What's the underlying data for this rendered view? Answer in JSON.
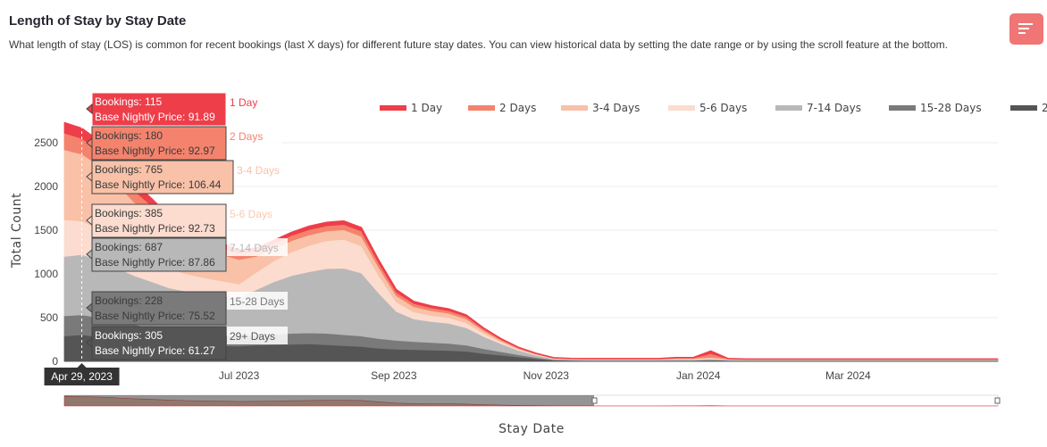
{
  "header": {
    "title": "Length of Stay by Stay Date",
    "subtitle": "What length of stay (LOS) is common for recent bookings (last X days) for different future stay dates. You can view historical data by setting the date range or by using the scroll feature at the bottom."
  },
  "menu": {
    "icon": "menu-lines-icon"
  },
  "chart_data": {
    "type": "area",
    "stacked": true,
    "xlabel": "Stay Date",
    "ylabel": "Total Count",
    "ylim": [
      0,
      3000
    ],
    "yticks": [
      "0",
      "500",
      "1000",
      "1500",
      "2000",
      "2500"
    ],
    "ytick_values": [
      0,
      500,
      1000,
      1500,
      2000,
      2500
    ],
    "xticks": [
      "Jul 2023",
      "Sep 2023",
      "Nov 2023",
      "Jan 2024",
      "Mar 2024"
    ],
    "xtick_dates": [
      "2023-07-01",
      "2023-09-01",
      "2023-11-01",
      "2024-01-01",
      "2024-03-01"
    ],
    "xlim": [
      "2023-04-22",
      "2024-04-30"
    ],
    "grid": true,
    "legend_position": "top-right",
    "hover_date": "Apr 29, 2023",
    "hover_date_value": "2023-04-29",
    "x": [
      "2023-04-22",
      "2023-04-29",
      "2023-05-06",
      "2023-05-13",
      "2023-05-20",
      "2023-05-27",
      "2023-06-03",
      "2023-06-10",
      "2023-06-17",
      "2023-06-24",
      "2023-07-01",
      "2023-07-08",
      "2023-07-15",
      "2023-07-22",
      "2023-07-29",
      "2023-08-05",
      "2023-08-12",
      "2023-08-19",
      "2023-08-26",
      "2023-09-02",
      "2023-09-09",
      "2023-09-16",
      "2023-09-23",
      "2023-09-30",
      "2023-10-07",
      "2023-10-14",
      "2023-10-21",
      "2023-10-28",
      "2023-11-04",
      "2023-11-11",
      "2023-11-18",
      "2023-11-25",
      "2023-12-02",
      "2023-12-09",
      "2023-12-16",
      "2023-12-23",
      "2023-12-30",
      "2024-01-06",
      "2024-01-13",
      "2024-01-20",
      "2024-01-27",
      "2024-02-03",
      "2024-02-10",
      "2024-02-17",
      "2024-02-24",
      "2024-03-02",
      "2024-03-09",
      "2024-03-16",
      "2024-03-23",
      "2024-03-30",
      "2024-04-06",
      "2024-04-13",
      "2024-04-20",
      "2024-04-30"
    ],
    "series": [
      {
        "name": "29+ Days",
        "color": "#555555",
        "values": [
          290,
          305,
          280,
          250,
          230,
          210,
          200,
          190,
          185,
          180,
          175,
          185,
          190,
          195,
          200,
          190,
          180,
          170,
          150,
          140,
          135,
          130,
          125,
          115,
          90,
          70,
          50,
          30,
          12,
          8,
          6,
          6,
          6,
          6,
          6,
          6,
          6,
          10,
          6,
          5,
          5,
          5,
          5,
          5,
          5,
          5,
          5,
          5,
          5,
          5,
          5,
          5,
          5,
          5
        ]
      },
      {
        "name": "15-28 Days",
        "color": "#7a7a7a",
        "values": [
          230,
          228,
          220,
          200,
          190,
          180,
          160,
          140,
          130,
          120,
          110,
          115,
          120,
          125,
          125,
          130,
          125,
          120,
          110,
          100,
          90,
          85,
          80,
          70,
          55,
          40,
          25,
          15,
          8,
          6,
          6,
          6,
          6,
          6,
          6,
          6,
          6,
          8,
          6,
          5,
          5,
          5,
          5,
          5,
          5,
          5,
          5,
          5,
          5,
          5,
          5,
          5,
          5,
          5
        ]
      },
      {
        "name": "7-14 Days",
        "color": "#b8b8b8",
        "values": [
          680,
          687,
          660,
          620,
          560,
          520,
          480,
          470,
          460,
          450,
          440,
          520,
          600,
          660,
          700,
          740,
          760,
          720,
          520,
          330,
          260,
          240,
          230,
          200,
          140,
          90,
          50,
          25,
          10,
          8,
          8,
          8,
          8,
          8,
          8,
          10,
          10,
          12,
          8,
          6,
          6,
          6,
          6,
          6,
          6,
          6,
          6,
          6,
          6,
          6,
          6,
          6,
          6,
          6
        ]
      },
      {
        "name": "5-6 Days",
        "color": "#fbdccf",
        "values": [
          420,
          385,
          360,
          320,
          280,
          250,
          220,
          200,
          180,
          170,
          160,
          200,
          240,
          270,
          300,
          320,
          330,
          310,
          200,
          110,
          80,
          70,
          65,
          55,
          35,
          20,
          12,
          8,
          4,
          4,
          4,
          4,
          4,
          4,
          4,
          6,
          6,
          8,
          4,
          3,
          3,
          3,
          3,
          3,
          3,
          3,
          3,
          3,
          3,
          3,
          3,
          3,
          3,
          3
        ]
      },
      {
        "name": "3-4 Days",
        "color": "#f8c1a8",
        "values": [
          800,
          765,
          720,
          640,
          560,
          500,
          420,
          360,
          320,
          300,
          280,
          180,
          140,
          130,
          120,
          110,
          110,
          110,
          90,
          70,
          60,
          55,
          50,
          45,
          30,
          18,
          10,
          6,
          3,
          3,
          3,
          3,
          3,
          3,
          3,
          6,
          6,
          10,
          3,
          3,
          3,
          3,
          3,
          3,
          3,
          3,
          3,
          3,
          3,
          3,
          3,
          3,
          3,
          3
        ]
      },
      {
        "name": "2 Days",
        "color": "#f4836d",
        "values": [
          190,
          180,
          170,
          150,
          130,
          120,
          110,
          100,
          90,
          80,
          70,
          60,
          60,
          60,
          60,
          60,
          60,
          60,
          50,
          40,
          35,
          32,
          30,
          28,
          20,
          12,
          8,
          5,
          3,
          3,
          3,
          3,
          3,
          3,
          3,
          6,
          6,
          40,
          3,
          3,
          3,
          3,
          3,
          3,
          3,
          3,
          3,
          3,
          3,
          3,
          3,
          3,
          3,
          3
        ]
      },
      {
        "name": "1 Day",
        "color": "#ee3e4a",
        "values": [
          120,
          115,
          110,
          100,
          90,
          80,
          70,
          60,
          55,
          50,
          40,
          35,
          35,
          35,
          40,
          40,
          40,
          40,
          35,
          30,
          25,
          22,
          20,
          18,
          12,
          8,
          5,
          3,
          2,
          2,
          2,
          2,
          2,
          2,
          2,
          4,
          4,
          30,
          2,
          2,
          2,
          2,
          2,
          2,
          2,
          2,
          2,
          2,
          2,
          2,
          2,
          2,
          2,
          2
        ]
      }
    ],
    "hover": [
      {
        "name": "1 Day",
        "bookings": "Bookings: 115",
        "price": "Base Nightly Price: 91.89",
        "bg": "#ee3e4a",
        "fg": "#ffffff",
        "label_color": "#ee3e4a"
      },
      {
        "name": "2 Days",
        "bookings": "Bookings: 180",
        "price": "Base Nightly Price: 92.97",
        "bg": "#f4836d",
        "fg": "#3a3a3a",
        "label_color": "#f4836d"
      },
      {
        "name": "3-4 Days",
        "bookings": "Bookings: 765",
        "price": "Base Nightly Price: 106.44",
        "bg": "#f8c1a8",
        "fg": "#3a3a3a",
        "label_color": "#f8c1a8"
      },
      {
        "name": "5-6 Days",
        "bookings": "Bookings: 385",
        "price": "Base Nightly Price: 92.73",
        "bg": "#fbdccf",
        "fg": "#3a3a3a",
        "label_color": "#fbdccf"
      },
      {
        "name": "7-14 Days",
        "bookings": "Bookings: 687",
        "price": "Base Nightly Price: 87.86",
        "bg": "#b8b8b8",
        "fg": "#3a3a3a",
        "label_color": "#b8b8b8"
      },
      {
        "name": "15-28 Days",
        "bookings": "Bookings: 228",
        "price": "Base Nightly Price: 75.52",
        "bg": "#7a7a7a",
        "fg": "#3a3a3a",
        "label_color": "#7a7a7a"
      },
      {
        "name": "29+ Days",
        "bookings": "Bookings: 305",
        "price": "Base Nightly Price: 61.27",
        "bg": "#555555",
        "fg": "#ffffff",
        "label_color": "#555555"
      }
    ]
  }
}
